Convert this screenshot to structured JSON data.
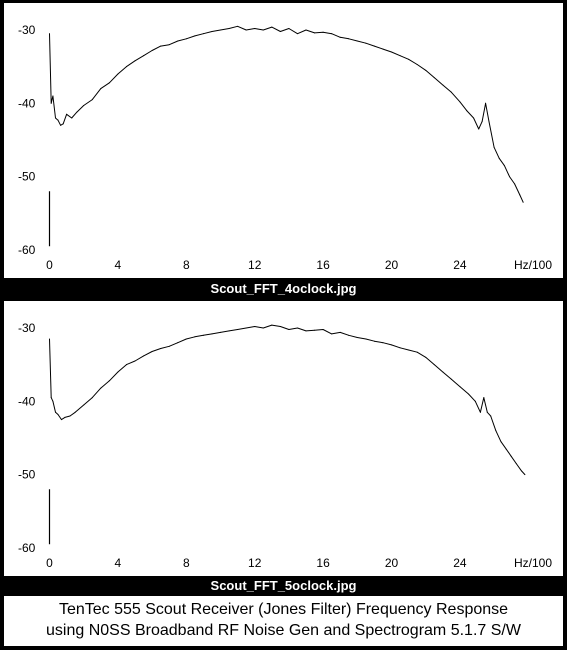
{
  "charts": [
    {
      "caption": "Scout_FFT_4oclock.jpg",
      "chart_data": {
        "type": "line",
        "title": "",
        "xlabel": "Hz/100",
        "ylabel": "",
        "xlim": [
          0,
          28
        ],
        "ylim": [
          -50,
          -30
        ],
        "x_ticks": [
          "0",
          "4",
          "8",
          "12",
          "16",
          "20",
          "24"
        ],
        "y_ticks": [
          "-30",
          "-40",
          "-50",
          "-60"
        ],
        "grid": false,
        "series": [
          {
            "name": "",
            "x": [
              0.0,
              0.1,
              0.2,
              0.35,
              0.5,
              0.65,
              0.8,
              1.0,
              1.3,
              1.6,
              2.0,
              2.5,
              3.0,
              3.5,
              4.0,
              4.5,
              5.0,
              5.5,
              6.0,
              6.5,
              7.0,
              7.5,
              8.0,
              8.5,
              9.0,
              9.5,
              10.0,
              10.5,
              11.0,
              11.5,
              12.0,
              12.5,
              13.0,
              13.5,
              14.0,
              14.5,
              15.0,
              15.5,
              16.0,
              16.5,
              17.0,
              17.5,
              18.0,
              18.5,
              19.0,
              19.5,
              20.0,
              20.5,
              21.0,
              21.5,
              22.0,
              22.5,
              23.0,
              23.5,
              24.0,
              24.4,
              24.8,
              25.1,
              25.3,
              25.5,
              25.7,
              26.0,
              26.3,
              26.6,
              26.9,
              27.2,
              27.5,
              27.7
            ],
            "values": [
              -30.5,
              -40.0,
              -39.0,
              -42.0,
              -42.3,
              -43.0,
              -42.8,
              -41.5,
              -42.0,
              -41.2,
              -40.3,
              -39.5,
              -38.0,
              -37.2,
              -36.0,
              -35.0,
              -34.2,
              -33.5,
              -32.8,
              -32.2,
              -32.0,
              -31.5,
              -31.2,
              -30.8,
              -30.5,
              -30.2,
              -30.0,
              -29.8,
              -29.5,
              -30.0,
              -29.8,
              -30.0,
              -29.6,
              -30.2,
              -29.8,
              -30.5,
              -30.0,
              -30.4,
              -30.3,
              -30.5,
              -31.0,
              -31.2,
              -31.5,
              -31.8,
              -32.2,
              -32.6,
              -33.0,
              -33.5,
              -34.0,
              -34.7,
              -35.5,
              -36.5,
              -37.5,
              -38.5,
              -39.8,
              -41.0,
              -42.0,
              -43.5,
              -42.5,
              -40.0,
              -42.5,
              -46.0,
              -47.5,
              -48.5,
              -50.0,
              -51.0,
              -52.5,
              -53.5
            ]
          }
        ]
      }
    },
    {
      "caption": "Scout_FFT_5oclock.jpg",
      "chart_data": {
        "type": "line",
        "title": "",
        "xlabel": "Hz/100",
        "ylabel": "",
        "xlim": [
          0,
          28
        ],
        "ylim": [
          -50,
          -30
        ],
        "x_ticks": [
          "0",
          "4",
          "8",
          "12",
          "16",
          "20",
          "24"
        ],
        "y_ticks": [
          "-30",
          "-40",
          "-50",
          "-60"
        ],
        "grid": false,
        "series": [
          {
            "name": "",
            "x": [
              0.0,
              0.1,
              0.2,
              0.35,
              0.5,
              0.7,
              0.9,
              1.2,
              1.5,
              2.0,
              2.5,
              3.0,
              3.5,
              4.0,
              4.5,
              5.0,
              5.5,
              6.0,
              6.5,
              7.0,
              7.5,
              8.0,
              8.5,
              9.0,
              9.5,
              10.0,
              10.5,
              11.0,
              11.5,
              12.0,
              12.5,
              13.0,
              13.5,
              14.0,
              14.5,
              15.0,
              15.5,
              16.0,
              16.5,
              17.0,
              17.5,
              18.0,
              18.5,
              19.0,
              19.5,
              20.0,
              20.5,
              21.0,
              21.5,
              22.0,
              22.5,
              23.0,
              23.5,
              24.0,
              24.5,
              24.9,
              25.2,
              25.4,
              25.6,
              25.8,
              26.1,
              26.4,
              26.7,
              27.0,
              27.3,
              27.6,
              27.8
            ],
            "values": [
              -31.5,
              -39.5,
              -40.0,
              -41.5,
              -41.8,
              -42.5,
              -42.2,
              -42.0,
              -41.5,
              -40.5,
              -39.5,
              -38.2,
              -37.2,
              -36.0,
              -35.0,
              -34.5,
              -33.8,
              -33.2,
              -32.8,
              -32.5,
              -32.0,
              -31.5,
              -31.2,
              -31.0,
              -30.8,
              -30.6,
              -30.4,
              -30.2,
              -30.0,
              -29.8,
              -30.0,
              -29.6,
              -29.8,
              -30.2,
              -30.0,
              -30.4,
              -30.3,
              -30.2,
              -30.8,
              -30.6,
              -31.0,
              -31.3,
              -31.5,
              -31.8,
              -32.0,
              -32.3,
              -32.7,
              -33.0,
              -33.3,
              -34.0,
              -35.0,
              -36.0,
              -37.0,
              -38.0,
              -39.0,
              -40.0,
              -41.5,
              -39.5,
              -41.5,
              -42.0,
              -44.0,
              -45.5,
              -46.5,
              -47.5,
              -48.5,
              -49.5,
              -50.0
            ]
          }
        ]
      }
    }
  ],
  "footer": {
    "line1": "TenTec 555 Scout Receiver (Jones Filter) Frequency Response",
    "line2": "using N0SS Broadband RF Noise Gen and Spectrogram 5.1.7 S/W"
  }
}
